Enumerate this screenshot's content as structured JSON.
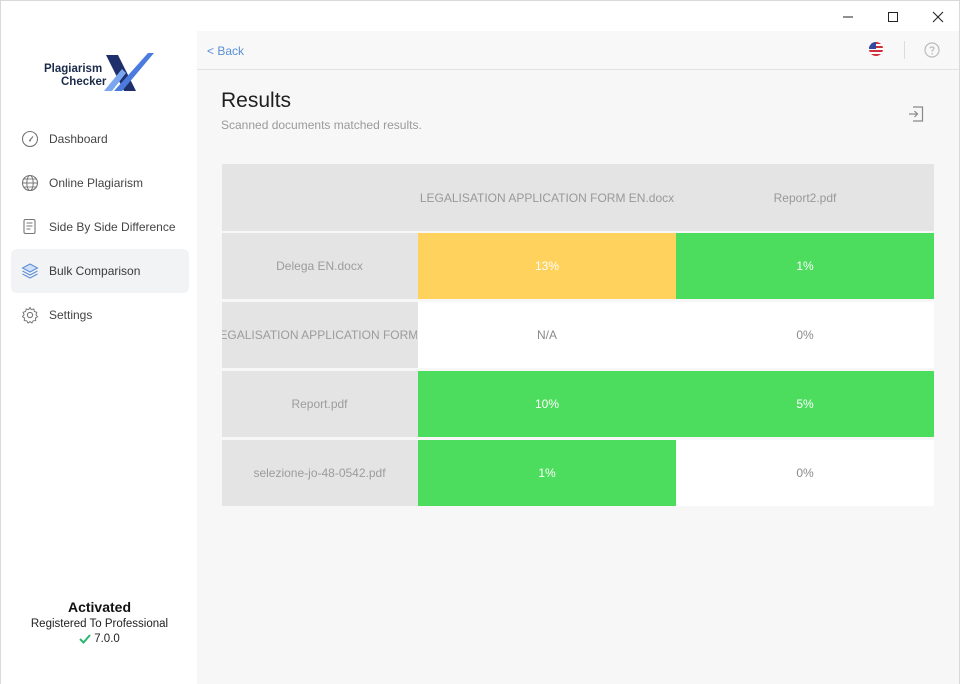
{
  "window": {
    "minimize_icon": "minimize-icon",
    "maximize_icon": "maximize-icon",
    "close_icon": "close-icon"
  },
  "sidebar": {
    "logo": {
      "line1": "Plagiarism",
      "line2": "Checker"
    },
    "items": [
      {
        "label": "Dashboard",
        "icon": "gauge-icon"
      },
      {
        "label": "Online Plagiarism",
        "icon": "globe-icon"
      },
      {
        "label": "Side By Side Difference",
        "icon": "document-icon"
      },
      {
        "label": "Bulk Comparison",
        "icon": "layers-icon",
        "active": true
      },
      {
        "label": "Settings",
        "icon": "gear-icon"
      }
    ],
    "activation": {
      "title": "Activated",
      "registered": "Registered To Professional",
      "version": "7.0.0"
    }
  },
  "topbar": {
    "back_label": "< Back",
    "language_icon": "us-flag-icon",
    "help_icon": "help-icon"
  },
  "page": {
    "title": "Results",
    "subtitle": "Scanned documents matched results.",
    "export_icon": "export-icon"
  },
  "results": {
    "columns": [
      "LEGALISATION APPLICATION FORM EN.docx",
      "Report2.pdf"
    ],
    "rows": [
      {
        "label": "Delega EN.docx",
        "cells": [
          {
            "value": "13%",
            "status": "yellow"
          },
          {
            "value": "1%",
            "status": "green"
          }
        ]
      },
      {
        "label": "LEGALISATION APPLICATION FORM EN.docx",
        "cells": [
          {
            "value": "N/A",
            "status": "none"
          },
          {
            "value": "0%",
            "status": "none"
          }
        ]
      },
      {
        "label": "Report.pdf",
        "cells": [
          {
            "value": "10%",
            "status": "green"
          },
          {
            "value": "5%",
            "status": "green"
          }
        ]
      },
      {
        "label": "selezione-jo-48-0542.pdf",
        "cells": [
          {
            "value": "1%",
            "status": "green"
          },
          {
            "value": "0%",
            "status": "none"
          }
        ]
      }
    ]
  },
  "colors": {
    "green": "#4cdd5e",
    "yellow": "#ffd25e",
    "accent": "#5a8ed6",
    "check": "#2bb673"
  }
}
